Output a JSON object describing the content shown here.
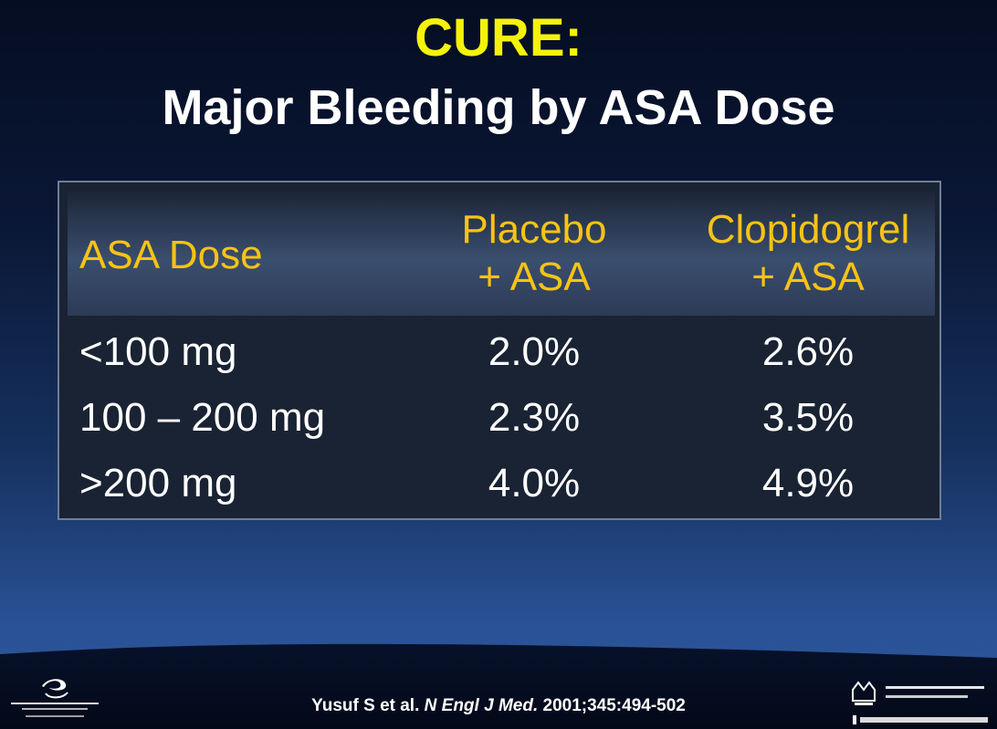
{
  "slide": {
    "title": "CURE:",
    "subtitle": "Major Bleeding by ASA Dose"
  },
  "table": {
    "headers": {
      "dose": "ASA Dose",
      "placebo_line1": "Placebo",
      "placebo_line2": "+ ASA",
      "clopidogrel_line1": "Clopidogrel",
      "clopidogrel_line2": "+ ASA"
    },
    "rows": [
      {
        "dose": "<100 mg",
        "placebo": "2.0%",
        "clopidogrel": "2.6%"
      },
      {
        "dose": "100 – 200 mg",
        "placebo": "2.3%",
        "clopidogrel": "3.5%"
      },
      {
        "dose": ">200 mg",
        "placebo": "4.0%",
        "clopidogrel": "4.9%"
      }
    ]
  },
  "citation": {
    "authors": "Yusuf S et al.",
    "journal": "N Engl J Med.",
    "details": "2001;345:494-502"
  },
  "logos": {
    "crf": "crf-logo",
    "columbia": "columbia-nyp-logo"
  },
  "colors": {
    "title": "#f5f20a",
    "header_text": "#f7c315",
    "body_text": "#ffffff"
  }
}
